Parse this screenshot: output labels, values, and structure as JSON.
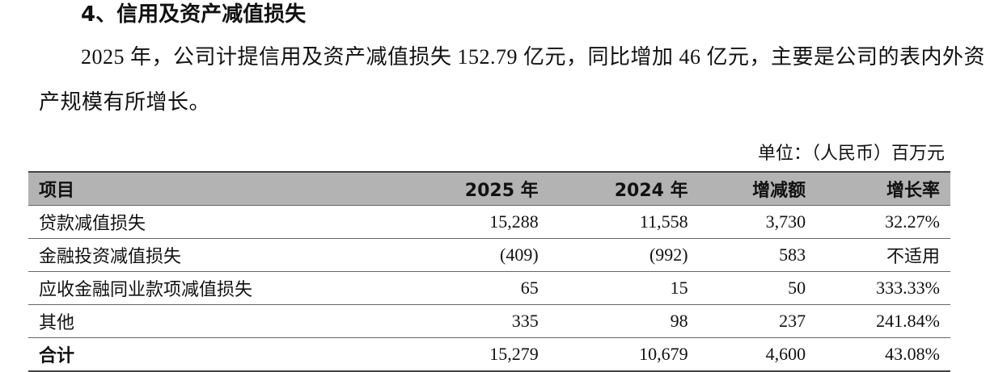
{
  "heading": "4、信用及资产减值损失",
  "paragraph": "2025 年，公司计提信用及资产减值损失 152.79 亿元，同比增加 46 亿元，主要是公司的表内外资产规模有所增长。",
  "unit": "单位：（人民币）百万元",
  "table": {
    "header": [
      "项目",
      "2025 年",
      "2024 年",
      "增减额",
      "增长率"
    ],
    "rows": [
      [
        "贷款减值损失",
        "15,288",
        "11,558",
        "3,730",
        "32.27%"
      ],
      [
        "金融投资减值损失",
        "(409)",
        "(992)",
        "583",
        "不适用"
      ],
      [
        "应收金融同业款项减值损失",
        "65",
        "15",
        "50",
        "333.33%"
      ],
      [
        "其他",
        "335",
        "98",
        "237",
        "241.84%"
      ],
      [
        "合计",
        "15,279",
        "10,679",
        "4,600",
        "43.08%"
      ]
    ]
  }
}
